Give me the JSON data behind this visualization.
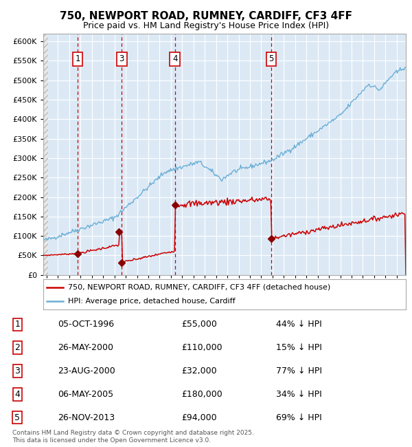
{
  "title": "750, NEWPORT ROAD, RUMNEY, CARDIFF, CF3 4FF",
  "subtitle": "Price paid vs. HM Land Registry's House Price Index (HPI)",
  "xlim": [
    1993.7,
    2025.8
  ],
  "ylim": [
    0,
    620000
  ],
  "yticks": [
    0,
    50000,
    100000,
    150000,
    200000,
    250000,
    300000,
    350000,
    400000,
    450000,
    500000,
    550000,
    600000
  ],
  "ytick_labels": [
    "£0",
    "£50K",
    "£100K",
    "£150K",
    "£200K",
    "£250K",
    "£300K",
    "£350K",
    "£400K",
    "£450K",
    "£500K",
    "£550K",
    "£600K"
  ],
  "background_color": "#dce9f5",
  "grid_color": "#ffffff",
  "hpi_color": "#6aaed6",
  "price_color": "#cc0000",
  "vline_color": "#cc0000",
  "sale_marker_color": "#8b0000",
  "legend_label_price": "750, NEWPORT ROAD, RUMNEY, CARDIFF, CF3 4FF (detached house)",
  "legend_label_hpi": "HPI: Average price, detached house, Cardiff",
  "transactions": [
    {
      "num": 1,
      "date_label": "05-OCT-1996",
      "year": 1996.75,
      "price": 55000,
      "pct": "44%",
      "dir": "↓"
    },
    {
      "num": 2,
      "date_label": "26-MAY-2000",
      "year": 2000.4,
      "price": 110000,
      "pct": "15%",
      "dir": "↓"
    },
    {
      "num": 3,
      "date_label": "23-AUG-2000",
      "year": 2000.65,
      "price": 32000,
      "pct": "77%",
      "dir": "↓"
    },
    {
      "num": 4,
      "date_label": "06-MAY-2005",
      "year": 2005.35,
      "price": 180000,
      "pct": "34%",
      "dir": "↓"
    },
    {
      "num": 5,
      "date_label": "26-NOV-2013",
      "year": 2013.9,
      "price": 94000,
      "pct": "69%",
      "dir": "↓"
    }
  ],
  "show_transaction_labels": [
    1,
    3,
    4,
    5
  ],
  "footer": "Contains HM Land Registry data © Crown copyright and database right 2025.\nThis data is licensed under the Open Government Licence v3.0."
}
